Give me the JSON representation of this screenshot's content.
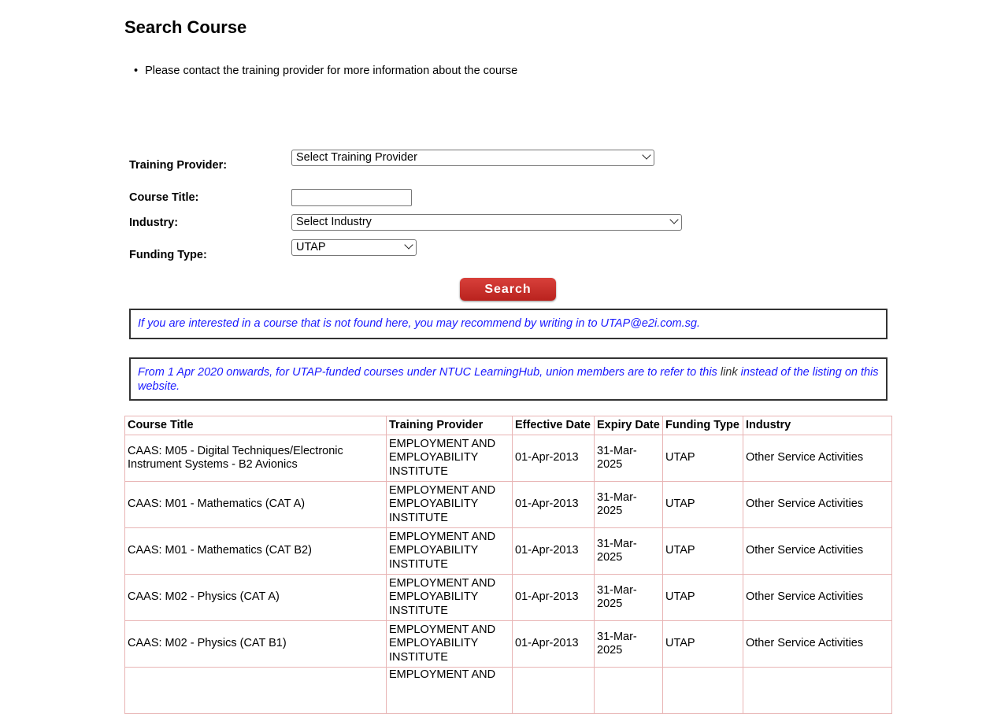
{
  "title": "Search Course",
  "bullet": "Please contact the training provider for more information about the course",
  "form": {
    "provider_label": "Training Provider:",
    "provider_value": "Select Training Provider",
    "title_label": "Course Title:",
    "title_value": "",
    "industry_label": "Industry:",
    "industry_value": "Select Industry",
    "funding_label": "Funding Type:",
    "funding_value": "UTAP",
    "search_label": "Search"
  },
  "notes": {
    "recommend": "If you are interested in a course that is not found here, you may recommend by writing in to UTAP@e2i.com.sg.",
    "ntuc_before": "From 1 Apr 2020 onwards, for UTAP-funded courses under NTUC LearningHub, union members are to refer to this ",
    "ntuc_link": "link",
    "ntuc_after": " instead of the listing on this website."
  },
  "table": {
    "headers": [
      "Course Title",
      "Training Provider",
      "Effective Date",
      "Expiry Date",
      "Funding Type",
      "Industry"
    ],
    "rows": [
      [
        "CAAS: M05 - Digital Techniques/Electronic Instrument Systems - B2 Avionics",
        "EMPLOYMENT AND EMPLOYABILITY INSTITUTE",
        "01-Apr-2013",
        "31-Mar-2025",
        "UTAP",
        "Other Service Activities"
      ],
      [
        "CAAS: M01 - Mathematics (CAT A)",
        "EMPLOYMENT AND EMPLOYABILITY INSTITUTE",
        "01-Apr-2013",
        "31-Mar-2025",
        "UTAP",
        "Other Service Activities"
      ],
      [
        "CAAS: M01 - Mathematics (CAT B2)",
        "EMPLOYMENT AND EMPLOYABILITY INSTITUTE",
        "01-Apr-2013",
        "31-Mar-2025",
        "UTAP",
        "Other Service Activities"
      ],
      [
        "CAAS: M02 - Physics (CAT A)",
        "EMPLOYMENT AND EMPLOYABILITY INSTITUTE",
        "01-Apr-2013",
        "31-Mar-2025",
        "UTAP",
        "Other Service Activities"
      ],
      [
        "CAAS: M02 - Physics (CAT B1)",
        "EMPLOYMENT AND EMPLOYABILITY INSTITUTE",
        "01-Apr-2013",
        "31-Mar-2025",
        "UTAP",
        "Other Service Activities"
      ],
      [
        "",
        "EMPLOYMENT AND",
        "",
        "",
        "",
        ""
      ]
    ]
  }
}
